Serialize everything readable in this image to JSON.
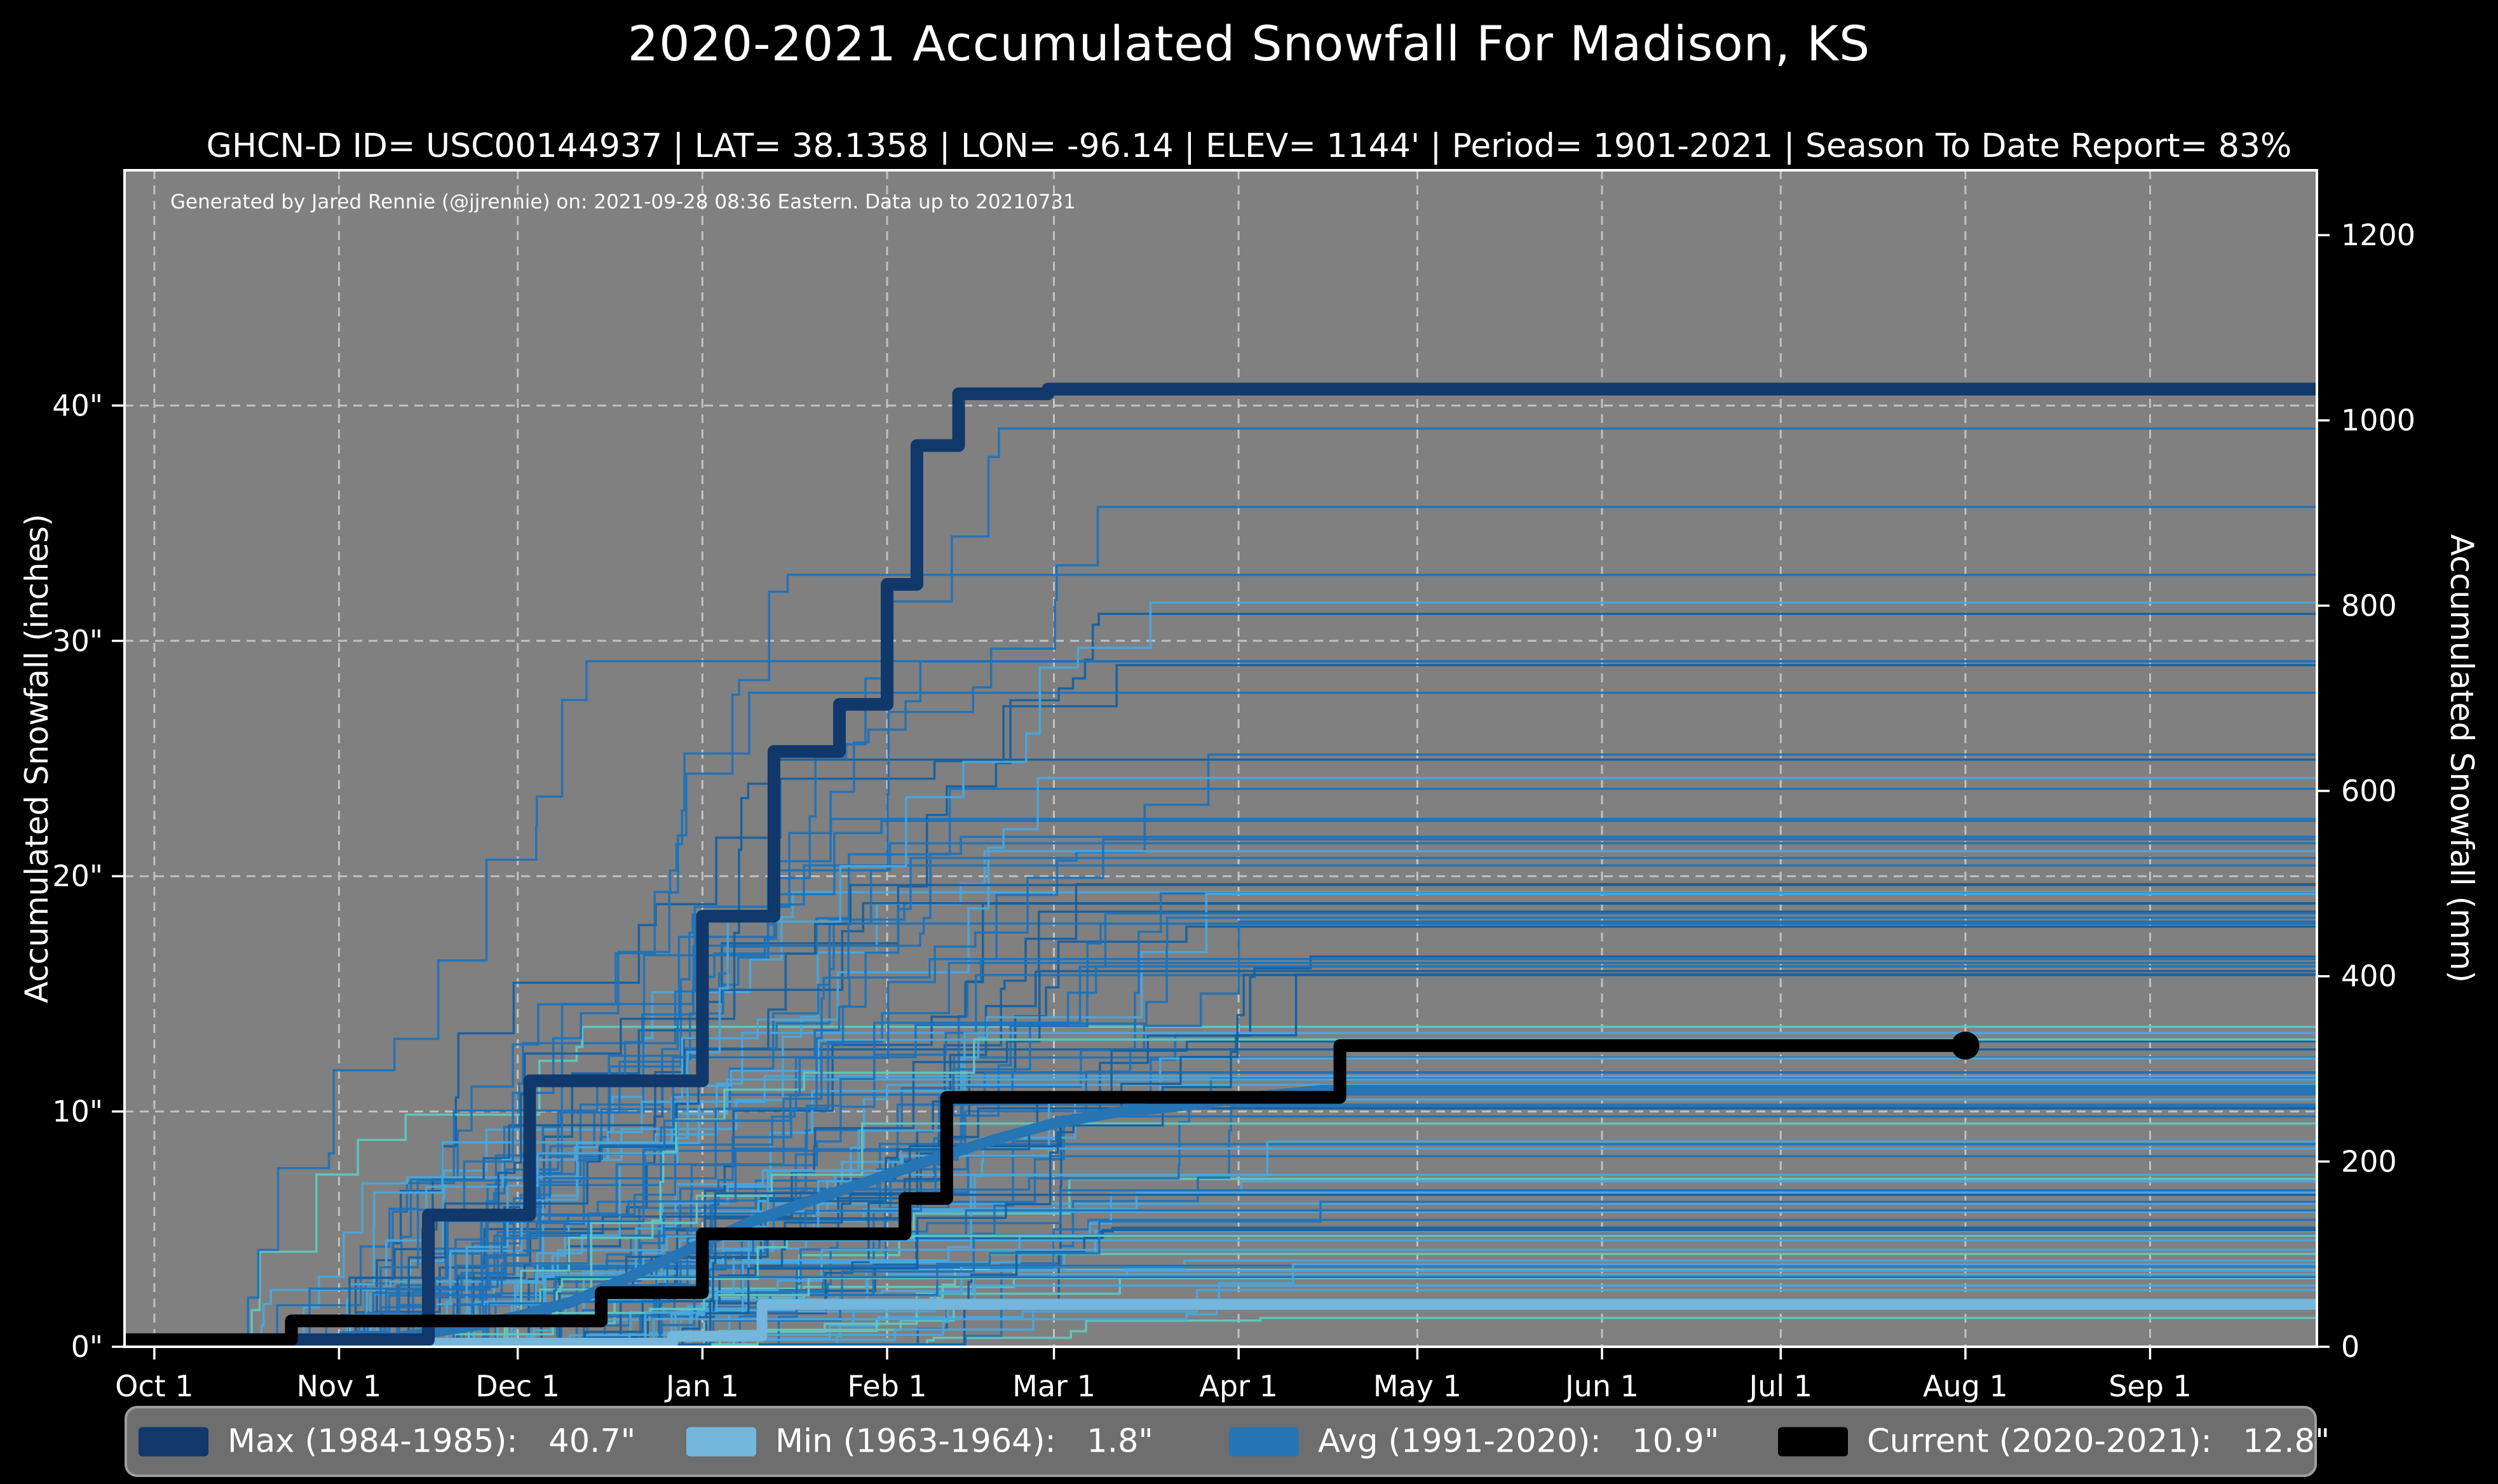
{
  "page": {
    "background": "#000000"
  },
  "chart_data": {
    "type": "line",
    "title": "2020-2021 Accumulated Snowfall For Madison, KS",
    "subtitle": "GHCN-D ID= USC00144937 | LAT= 38.1358 | LON= -96.14 | ELEV= 1144' | Period= 1901-2021 | Season To Date Report= 83%",
    "attribution": "Generated by Jared Rennie (@jjrennie) on: 2021-09-28 08:36 Eastern. Data up to 20210731",
    "plot_bg": "#808080",
    "grid": {
      "color": "#c9c9c9",
      "dash": "14 10",
      "width": 3
    },
    "spine_color": "#ffffff",
    "tick_color": "#ffffff",
    "x_axis": {
      "unit": "days since Oct 1",
      "domain": [
        -5,
        363
      ],
      "ticks": [
        {
          "day": 0,
          "label": "Oct 1"
        },
        {
          "day": 31,
          "label": "Nov 1"
        },
        {
          "day": 61,
          "label": "Dec 1"
        },
        {
          "day": 92,
          "label": "Jan 1"
        },
        {
          "day": 123,
          "label": "Feb 1"
        },
        {
          "day": 151,
          "label": "Mar 1"
        },
        {
          "day": 182,
          "label": "Apr 1"
        },
        {
          "day": 212,
          "label": "May 1"
        },
        {
          "day": 243,
          "label": "Jun 1"
        },
        {
          "day": 273,
          "label": "Jul 1"
        },
        {
          "day": 304,
          "label": "Aug 1"
        },
        {
          "day": 335,
          "label": "Sep 1"
        }
      ]
    },
    "y_axis_left": {
      "label": "Accumulated Snowfall (inches)",
      "domain": [
        0,
        50
      ],
      "grid_values": [
        10,
        20,
        30,
        40
      ],
      "ticks": [
        {
          "v": 0,
          "label": "0\""
        },
        {
          "v": 10,
          "label": "10\""
        },
        {
          "v": 20,
          "label": "20\""
        },
        {
          "v": 30,
          "label": "30\""
        },
        {
          "v": 40,
          "label": "40\""
        }
      ]
    },
    "y_axis_right": {
      "label": "Accumulated Snowfall (mm)",
      "mm_per_inch": 25.4,
      "ticks": [
        {
          "mm": 0,
          "label": "0"
        },
        {
          "mm": 200,
          "label": "200"
        },
        {
          "mm": 400,
          "label": "400"
        },
        {
          "mm": 600,
          "label": "600"
        },
        {
          "mm": 800,
          "label": "800"
        },
        {
          "mm": 1000,
          "label": "1000"
        },
        {
          "mm": 1200,
          "label": "1200"
        }
      ]
    },
    "series": [
      {
        "id": "max",
        "season": "1984-1985",
        "final_inches": 40.7,
        "label": "Max (1984-1985):   40.7\"",
        "color": "#10386b",
        "width": 20,
        "mode": "step-vertices",
        "points": [
          [
            -5,
            0.3
          ],
          [
            46,
            0.3
          ],
          [
            46,
            5.6
          ],
          [
            63,
            5.6
          ],
          [
            63,
            11.3
          ],
          [
            92,
            11.3
          ],
          [
            92,
            18.3
          ],
          [
            104,
            18.3
          ],
          [
            104,
            25.3
          ],
          [
            115,
            25.3
          ],
          [
            115,
            27.3
          ],
          [
            123,
            27.3
          ],
          [
            123,
            32.4
          ],
          [
            128,
            32.4
          ],
          [
            128,
            38.3
          ],
          [
            135,
            38.3
          ],
          [
            135,
            40.5
          ],
          [
            150,
            40.5
          ],
          [
            150,
            40.7
          ],
          [
            363,
            40.7
          ]
        ]
      },
      {
        "id": "min",
        "season": "1963-1964",
        "final_inches": 1.8,
        "label": "Min (1963-1964):   1.8\"",
        "color": "#74b6dc",
        "width": 17,
        "mode": "step-vertices",
        "points": [
          [
            -5,
            0.15
          ],
          [
            87,
            0.15
          ],
          [
            87,
            0.45
          ],
          [
            102,
            0.45
          ],
          [
            102,
            1.8
          ],
          [
            363,
            1.8
          ]
        ]
      },
      {
        "id": "avg",
        "season": "1991-2020",
        "final_inches": 10.9,
        "label": "Avg (1991-2020):   10.9\"",
        "color": "#2675b5",
        "width": 17,
        "mode": "line",
        "points": [
          [
            -5,
            0.1
          ],
          [
            25,
            0.12
          ],
          [
            35,
            0.2
          ],
          [
            45,
            0.55
          ],
          [
            55,
            0.95
          ],
          [
            61,
            1.3
          ],
          [
            70,
            1.9
          ],
          [
            80,
            3.0
          ],
          [
            92,
            4.4
          ],
          [
            100,
            5.3
          ],
          [
            110,
            6.2
          ],
          [
            123,
            7.3
          ],
          [
            131,
            8.0
          ],
          [
            141,
            8.8
          ],
          [
            151,
            9.5
          ],
          [
            161,
            9.95
          ],
          [
            171,
            10.2
          ],
          [
            182,
            10.55
          ],
          [
            196,
            10.9
          ],
          [
            363,
            10.9
          ]
        ]
      },
      {
        "id": "current",
        "season": "2020-2021",
        "final_inches": 12.8,
        "label": "Current (2020-2021):   12.8\"",
        "color": "#000000",
        "width": 20,
        "mode": "step-vertices",
        "end_marker": {
          "day": 304,
          "value": 12.8,
          "radius": 22
        },
        "points": [
          [
            -5,
            0.3
          ],
          [
            23,
            0.3
          ],
          [
            23,
            1.1
          ],
          [
            75,
            1.1
          ],
          [
            75,
            2.3
          ],
          [
            92,
            2.3
          ],
          [
            92,
            4.8
          ],
          [
            126,
            4.8
          ],
          [
            126,
            6.3
          ],
          [
            133,
            6.3
          ],
          [
            133,
            10.6
          ],
          [
            199,
            10.6
          ],
          [
            199,
            12.8
          ],
          [
            304,
            12.8
          ]
        ]
      }
    ],
    "draw_order": [
      "min",
      "avg",
      "max",
      "current"
    ],
    "background_seasons": {
      "description": "unlabeled thin traces for every season 1901-2021",
      "count": 106,
      "seed": 20210928,
      "line_width": 3.5,
      "opacity": 0.95,
      "palette": {
        "teal": "#5fc7c0",
        "light": "#49a6dc",
        "mid": "#1f72b8",
        "dark": "#15609f"
      },
      "final_inches_buckets": [
        {
          "min": 1.0,
          "max": 2.2,
          "weight": 6
        },
        {
          "min": 2.2,
          "max": 5.0,
          "weight": 16
        },
        {
          "min": 5.0,
          "max": 9.0,
          "weight": 22
        },
        {
          "min": 9.0,
          "max": 14.0,
          "weight": 24
        },
        {
          "min": 14.0,
          "max": 20.0,
          "weight": 16
        },
        {
          "min": 20.0,
          "max": 26.0,
          "weight": 12
        },
        {
          "min": 26.0,
          "max": 32.0,
          "weight": 6
        },
        {
          "min": 32.0,
          "max": 37.0,
          "weight": 3
        },
        {
          "min": 37.0,
          "max": 39.8,
          "weight": 3
        }
      ]
    },
    "legend_position": "bottom"
  },
  "legend": {
    "entries": [
      {
        "series": "max"
      },
      {
        "series": "min"
      },
      {
        "series": "avg"
      },
      {
        "series": "current"
      }
    ]
  }
}
